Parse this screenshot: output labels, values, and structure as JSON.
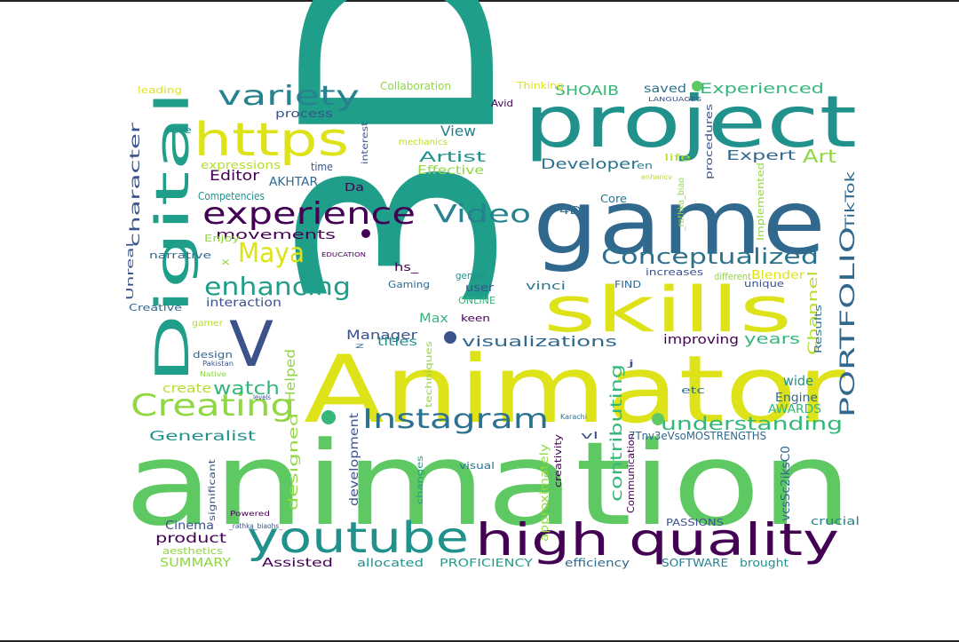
{
  "palette": [
    "#440154",
    "#3b528b",
    "#21918c",
    "#5ec962",
    "#fde725",
    "#2c728e",
    "#35b779",
    "#90d743",
    "#31688e",
    "#26828e",
    "#1f9e89",
    "#6ece58",
    "#b5de2b",
    "#dde318"
  ],
  "words": [
    {
      "text": "animation",
      "color": "#5ec962"
    },
    {
      "text": "Animator",
      "color": "#dde318"
    },
    {
      "text": "3D",
      "color": "#1f9e89"
    },
    {
      "text": "game",
      "color": "#31688e"
    },
    {
      "text": "project",
      "color": "#21918c"
    },
    {
      "text": "skills",
      "color": "#dde318"
    },
    {
      "text": "high quality",
      "color": "#440154"
    },
    {
      "text": "youtube",
      "color": "#21918c"
    },
    {
      "text": "Digital",
      "color": "#1f9e89"
    },
    {
      "text": "V",
      "color": "#3b528b"
    },
    {
      "text": "https",
      "color": "#dde318"
    },
    {
      "text": "experience",
      "color": "#440154"
    },
    {
      "text": "Instagram",
      "color": "#2c728e"
    },
    {
      "text": "Creating",
      "color": "#90d743"
    },
    {
      "text": "enhancing",
      "color": "#1f9e89"
    },
    {
      "text": "Video",
      "color": "#26828e"
    },
    {
      "text": "variety",
      "color": "#26828e"
    },
    {
      "text": "Maya",
      "color": "#dde318"
    },
    {
      "text": "Conceptualized",
      "color": "#2c728e"
    },
    {
      "text": "PORTFOLIO",
      "color": "#31688e"
    },
    {
      "text": "TikTok",
      "color": "#31688e"
    },
    {
      "text": "understanding",
      "color": "#35b779"
    },
    {
      "text": "visualizations",
      "color": "#31688e"
    },
    {
      "text": "watch",
      "color": "#35b779"
    },
    {
      "text": "contributing",
      "color": "#35b779"
    },
    {
      "text": "Editor",
      "color": "#440154"
    },
    {
      "text": "movements",
      "color": "#440154"
    },
    {
      "text": "Experienced",
      "color": "#35b779"
    },
    {
      "text": "Developer",
      "color": "#2c728e"
    },
    {
      "text": "Art",
      "color": "#90d743"
    },
    {
      "text": "Expert",
      "color": "#31688e"
    },
    {
      "text": "Artist",
      "color": "#21918c"
    },
    {
      "text": "View",
      "color": "#26828e"
    },
    {
      "text": "Effective",
      "color": "#90d743"
    },
    {
      "text": "AKHTAR",
      "color": "#31688e"
    },
    {
      "text": "years",
      "color": "#35b779"
    },
    {
      "text": "Generalist",
      "color": "#21918c"
    },
    {
      "text": "product",
      "color": "#440154"
    },
    {
      "text": "interaction",
      "color": "#3b528b"
    },
    {
      "text": "Helped",
      "color": "#90d743"
    },
    {
      "text": "designed",
      "color": "#90d743"
    },
    {
      "text": "development",
      "color": "#3b528b"
    },
    {
      "text": "Manager",
      "color": "#3b528b"
    },
    {
      "text": "Max",
      "color": "#35b779"
    },
    {
      "text": "titles",
      "color": "#21918c"
    },
    {
      "text": "improving",
      "color": "#440154"
    },
    {
      "text": "wide",
      "color": "#21918c"
    },
    {
      "text": "Engine",
      "color": "#31688e"
    },
    {
      "text": "AWARDS",
      "color": "#35b779"
    },
    {
      "text": "Channel",
      "color": "#b5de2b"
    },
    {
      "text": "Blender",
      "color": "#dde318"
    },
    {
      "text": "SHOAIB",
      "color": "#35b779"
    },
    {
      "text": "saved",
      "color": "#2c728e"
    },
    {
      "text": "Collaboration",
      "color": "#90d743"
    },
    {
      "text": "process",
      "color": "#3b528b"
    },
    {
      "text": "expressions",
      "color": "#b5de2b"
    },
    {
      "text": "time",
      "color": "#3b528b"
    },
    {
      "text": "Competencies",
      "color": "#21918c"
    },
    {
      "text": "character",
      "color": "#3b528b"
    },
    {
      "text": "create",
      "color": "#b5de2b"
    },
    {
      "text": "Cinema",
      "color": "#3b528b"
    },
    {
      "text": "SUMMARY",
      "color": "#90d743"
    },
    {
      "text": "Assisted",
      "color": "#440154"
    },
    {
      "text": "allocated",
      "color": "#21918c"
    },
    {
      "text": "PROFICIENCY",
      "color": "#1f9e89"
    },
    {
      "text": "efficiency",
      "color": "#31688e"
    },
    {
      "text": "SOFTWARE",
      "color": "#26828e"
    },
    {
      "text": "brought",
      "color": "#21918c"
    },
    {
      "text": "crucial",
      "color": "#26828e"
    },
    {
      "text": "PASSIONS",
      "color": "#3b528b"
    },
    {
      "text": "Communication",
      "color": "#440154"
    },
    {
      "text": "approximately",
      "color": "#90d743"
    },
    {
      "text": "vcsSc2iksC0",
      "color": "#31688e"
    },
    {
      "text": "7Tnv3eVsoMOSTRENGTHS",
      "color": "#31688e"
    },
    {
      "text": "etc",
      "color": "#2c728e"
    },
    {
      "text": "Results",
      "color": "#2c728e"
    },
    {
      "text": "unique",
      "color": "#3b528b"
    },
    {
      "text": "different",
      "color": "#90d743"
    },
    {
      "text": "increases",
      "color": "#3b528b"
    },
    {
      "text": "FIND",
      "color": "#31688e"
    },
    {
      "text": "vinci",
      "color": "#2c728e"
    },
    {
      "text": "keen",
      "color": "#440154"
    },
    {
      "text": "ONLINE",
      "color": "#35b779"
    },
    {
      "text": "user",
      "color": "#3b528b"
    },
    {
      "text": "genres",
      "color": "#21918c"
    },
    {
      "text": "hs_",
      "color": "#440154"
    },
    {
      "text": "Gaming",
      "color": "#31688e"
    },
    {
      "text": "Core",
      "color": "#2c728e"
    },
    {
      "text": "4D",
      "color": "#2c728e"
    },
    {
      "text": "en",
      "color": "#26828e"
    },
    {
      "text": "Da",
      "color": "#440154"
    },
    {
      "text": "life",
      "color": "#b5de2b"
    },
    {
      "text": "procedures",
      "color": "#3b528b"
    },
    {
      "text": "Implemented",
      "color": "#90d743"
    },
    {
      "text": "_rathka_biao",
      "color": "#90d743"
    },
    {
      "text": "Avid",
      "color": "#440154"
    },
    {
      "text": "Thinking",
      "color": "#dde318"
    },
    {
      "text": "LANGUAGES",
      "color": "#3b528b"
    },
    {
      "text": "leading",
      "color": "#dde318"
    },
    {
      "text": "role",
      "color": "#21918c"
    },
    {
      "text": "interest",
      "color": "#3b528b"
    },
    {
      "text": "mechanics",
      "color": "#b5de2b"
    },
    {
      "text": "enhancv",
      "color": "#b5de2b"
    },
    {
      "text": "Enjoy",
      "color": "#90d743"
    },
    {
      "text": "narrative",
      "color": "#31688e"
    },
    {
      "text": "x",
      "color": "#90d743"
    },
    {
      "text": "EDUCATION",
      "color": "#440154"
    },
    {
      "text": "Unreal",
      "color": "#3b528b"
    },
    {
      "text": "Creative",
      "color": "#31688e"
    },
    {
      "text": "gamer",
      "color": "#b5de2b"
    },
    {
      "text": "design",
      "color": "#31688e"
    },
    {
      "text": "Pakistan",
      "color": "#3b528b"
    },
    {
      "text": "Native",
      "color": "#90d743"
    },
    {
      "text": "levels",
      "color": "#3b528b"
    },
    {
      "text": "significant",
      "color": "#3b528b"
    },
    {
      "text": "Powered",
      "color": "#440154"
    },
    {
      "text": "_rathka_biaohs_",
      "color": "#3b528b"
    },
    {
      "text": "aesthetics",
      "color": "#90d743"
    },
    {
      "text": "techniques",
      "color": "#90d743"
    },
    {
      "text": "changes",
      "color": "#1f9e89"
    },
    {
      "text": "visual",
      "color": "#2c728e"
    },
    {
      "text": "creativity",
      "color": "#440154"
    },
    {
      "text": "Karachi",
      "color": "#2c728e"
    },
    {
      "text": "vl",
      "color": "#3b528b"
    },
    {
      "text": "z",
      "color": "#31688e"
    },
    {
      "text": "j",
      "color": "#3b528b"
    }
  ]
}
